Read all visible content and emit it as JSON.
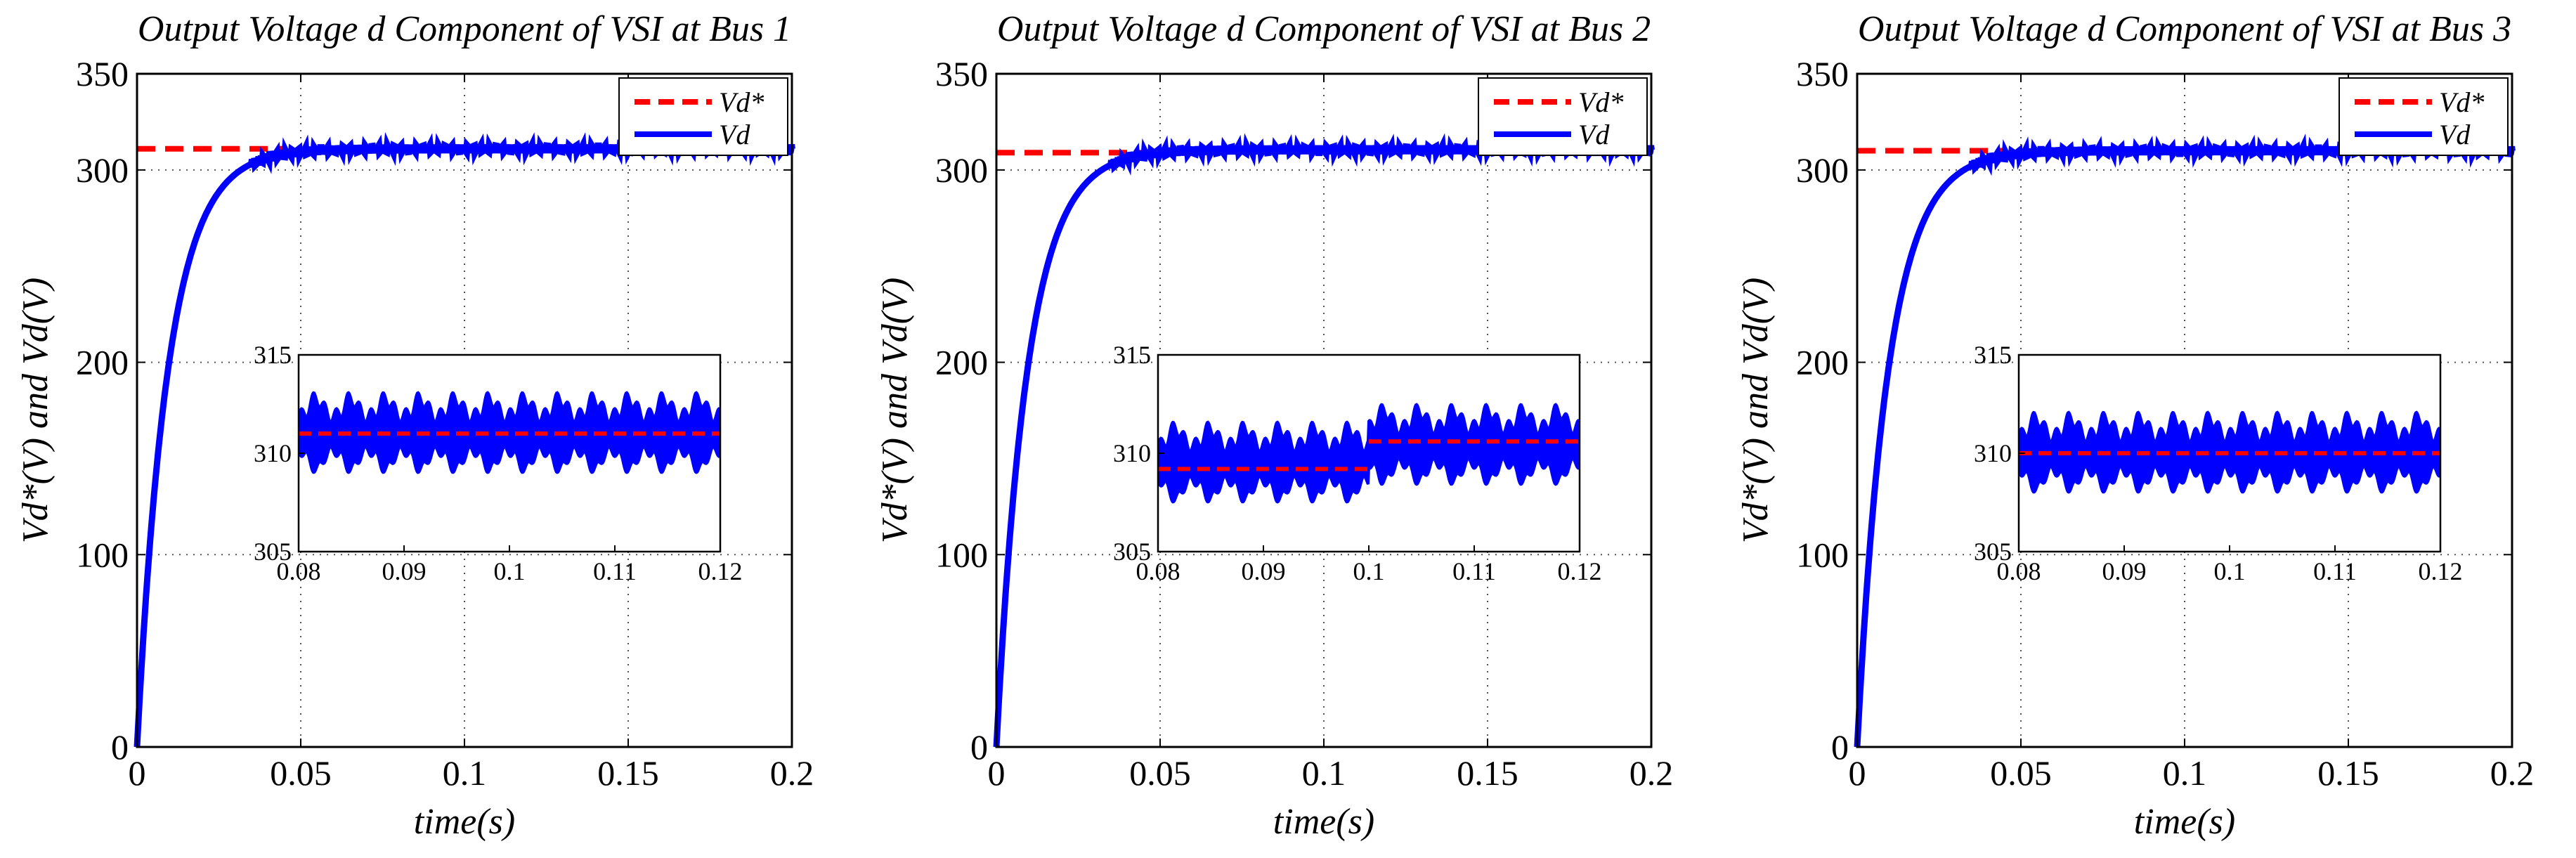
{
  "figure": {
    "description": "Three subplots of VSI output voltage d component (reference vs measured)"
  },
  "chart_data": [
    {
      "type": "line",
      "title": "Output Voltage d Component of VSI at Bus 1",
      "xlabel": "time(s)",
      "ylabel": "Vd*(V) and Vd(V)",
      "xlim": [
        0,
        0.2
      ],
      "ylim": [
        0,
        350
      ],
      "xticks": [
        0,
        0.05,
        0.1,
        0.15,
        0.2
      ],
      "xtick_labels": [
        "0",
        "0.05",
        "0.1",
        "0.15",
        "0.2"
      ],
      "yticks": [
        0,
        100,
        200,
        300,
        350
      ],
      "ytick_labels": [
        "0",
        "100",
        "200",
        "300",
        "350"
      ],
      "grid": true,
      "legend": {
        "position": "top-right",
        "entries": [
          "Vd*",
          "Vd"
        ]
      },
      "series": [
        {
          "name": "Vd*",
          "style": "dashed",
          "color": "#ff0000",
          "x": [
            0,
            0.045
          ],
          "y": [
            311,
            311
          ]
        },
        {
          "name": "Vd",
          "style": "solid",
          "color": "#0000ff",
          "tau": 0.0095,
          "final": 311,
          "x_end": 0.2
        }
      ],
      "inset": {
        "xlim": [
          0.08,
          0.12
        ],
        "ylim": [
          305,
          315
        ],
        "xticks": [
          0.08,
          0.09,
          0.1,
          0.11,
          0.12
        ],
        "xtick_labels": [
          "0.08",
          "0.09",
          "0.1",
          "0.11",
          "0.12"
        ],
        "yticks": [
          305,
          310,
          315
        ],
        "ytick_labels": [
          "305",
          "310",
          "315"
        ],
        "reference": [
          {
            "x0": 0.08,
            "x1": 0.12,
            "y": 311
          }
        ],
        "ripple": {
          "center": 311,
          "amplitude": 2.0
        }
      }
    },
    {
      "type": "line",
      "title": "Output Voltage d Component of VSI at Bus 2",
      "xlabel": "time(s)",
      "ylabel": "Vd*(V) and Vd(V)",
      "xlim": [
        0,
        0.2
      ],
      "ylim": [
        0,
        350
      ],
      "xticks": [
        0,
        0.05,
        0.1,
        0.15,
        0.2
      ],
      "xtick_labels": [
        "0",
        "0.05",
        "0.1",
        "0.15",
        "0.2"
      ],
      "yticks": [
        0,
        100,
        200,
        300,
        350
      ],
      "ytick_labels": [
        "0",
        "100",
        "200",
        "300",
        "350"
      ],
      "grid": true,
      "legend": {
        "position": "top-right",
        "entries": [
          "Vd*",
          "Vd"
        ]
      },
      "series": [
        {
          "name": "Vd*",
          "style": "dashed",
          "color": "#ff0000",
          "x": [
            0,
            0.045
          ],
          "y": [
            309,
            309
          ]
        },
        {
          "name": "Vd",
          "style": "solid",
          "color": "#0000ff",
          "tau": 0.0095,
          "final": 310.5,
          "x_end": 0.2
        }
      ],
      "inset": {
        "xlim": [
          0.08,
          0.12
        ],
        "ylim": [
          305,
          315
        ],
        "xticks": [
          0.08,
          0.09,
          0.1,
          0.11,
          0.12
        ],
        "xtick_labels": [
          "0.08",
          "0.09",
          "0.1",
          "0.11",
          "0.12"
        ],
        "yticks": [
          305,
          310,
          315
        ],
        "ytick_labels": [
          "305",
          "310",
          "315"
        ],
        "reference": [
          {
            "x0": 0.08,
            "x1": 0.1,
            "y": 309.2
          },
          {
            "x0": 0.1,
            "x1": 0.12,
            "y": 310.6
          }
        ],
        "ripple": {
          "center": 309.5,
          "center2": 310.4,
          "amplitude": 2.0
        }
      }
    },
    {
      "type": "line",
      "title": "Output Voltage d Component of VSI at Bus 3",
      "xlabel": "time(s)",
      "ylabel": "Vd*(V) and Vd(V)",
      "xlim": [
        0,
        0.2
      ],
      "ylim": [
        0,
        350
      ],
      "xticks": [
        0,
        0.05,
        0.1,
        0.15,
        0.2
      ],
      "xtick_labels": [
        "0",
        "0.05",
        "0.1",
        "0.15",
        "0.2"
      ],
      "yticks": [
        0,
        100,
        200,
        300,
        350
      ],
      "ytick_labels": [
        "0",
        "100",
        "200",
        "300",
        "350"
      ],
      "grid": true,
      "legend": {
        "position": "top-right",
        "entries": [
          "Vd*",
          "Vd"
        ]
      },
      "series": [
        {
          "name": "Vd*",
          "style": "dashed",
          "color": "#ff0000",
          "x": [
            0,
            0.045
          ],
          "y": [
            310,
            310
          ]
        },
        {
          "name": "Vd",
          "style": "solid",
          "color": "#0000ff",
          "tau": 0.0095,
          "final": 310,
          "x_end": 0.2
        }
      ],
      "inset": {
        "xlim": [
          0.08,
          0.12
        ],
        "ylim": [
          305,
          315
        ],
        "xticks": [
          0.08,
          0.09,
          0.1,
          0.11,
          0.12
        ],
        "xtick_labels": [
          "0.08",
          "0.09",
          "0.1",
          "0.11",
          "0.12"
        ],
        "yticks": [
          305,
          310,
          315
        ],
        "ytick_labels": [
          "305",
          "310",
          "315"
        ],
        "reference": [
          {
            "x0": 0.08,
            "x1": 0.12,
            "y": 310
          }
        ],
        "ripple": {
          "center": 310,
          "amplitude": 2.0
        }
      }
    }
  ]
}
